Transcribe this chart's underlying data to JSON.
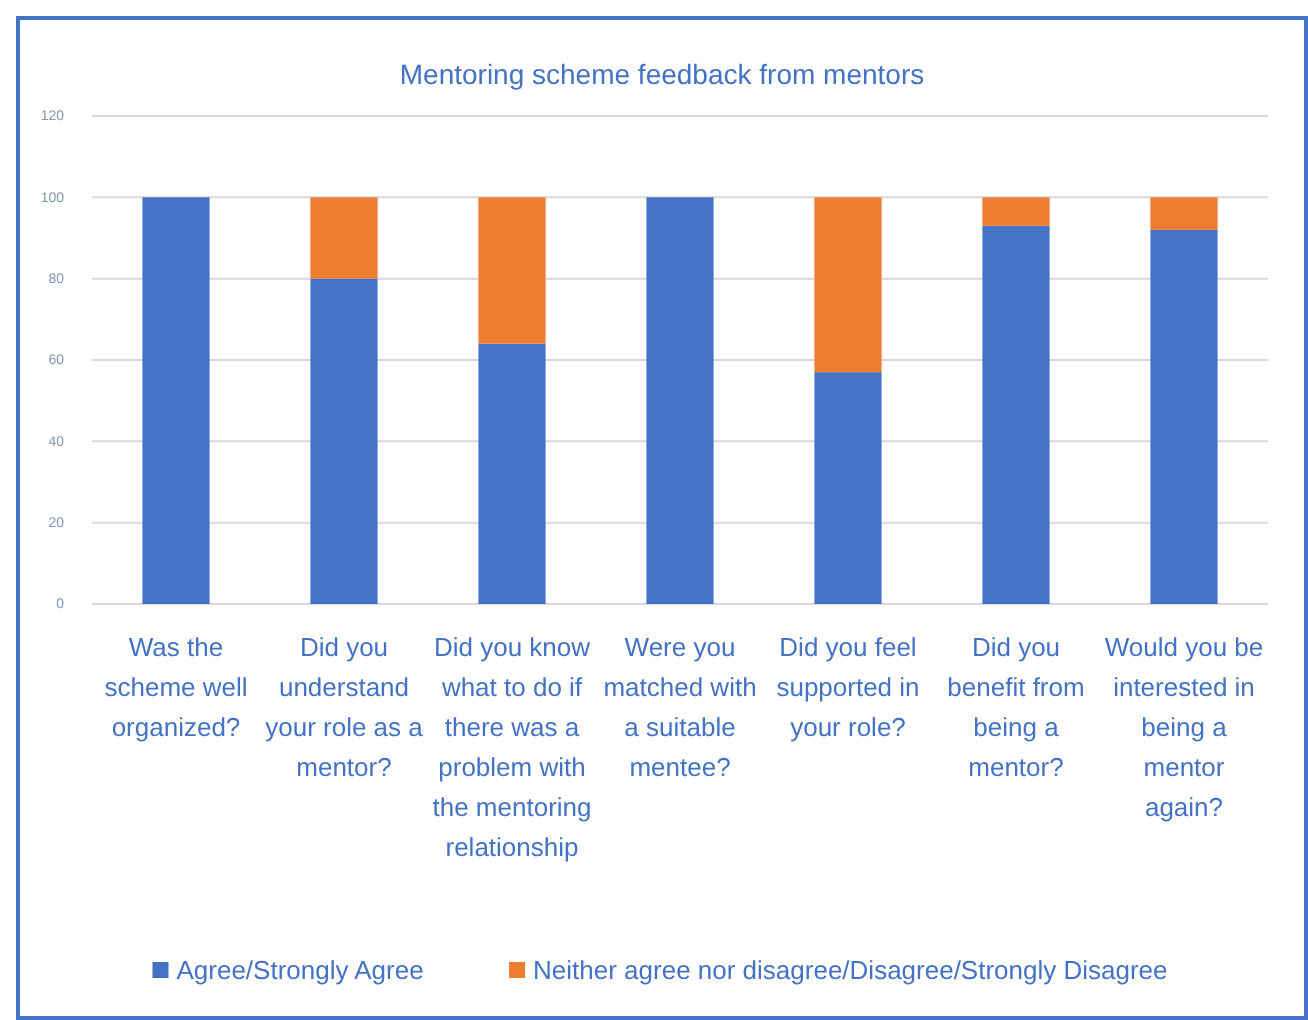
{
  "chart_data": {
    "type": "bar",
    "title": "Mentoring scheme feedback from mentors",
    "categories": [
      "Was the scheme well organized?",
      "Did you understand your role as a mentor?",
      "Did you know what to do if there was a problem with the mentoring relationship",
      "Were you matched with  a  suitable mentee?",
      "Did you feel supported in your role?",
      "Did you benefit from being a mentor?",
      "Would you be interested in being a mentor again?"
    ],
    "series": [
      {
        "name": "Agree/Strongly Agree",
        "color": "#4472c4",
        "values": [
          100,
          80,
          64,
          100,
          57,
          93,
          92
        ]
      },
      {
        "name": "Neither agree nor disagree/Disagree/Strongly Disagree",
        "color": "#ed7d31",
        "values": [
          0,
          20,
          36,
          0,
          43,
          7,
          8
        ]
      }
    ],
    "stacked": true,
    "ylim": [
      0,
      120
    ],
    "yticks": [
      0,
      20,
      40,
      60,
      80,
      100,
      120
    ],
    "grid": "y",
    "legend": "bottom"
  }
}
